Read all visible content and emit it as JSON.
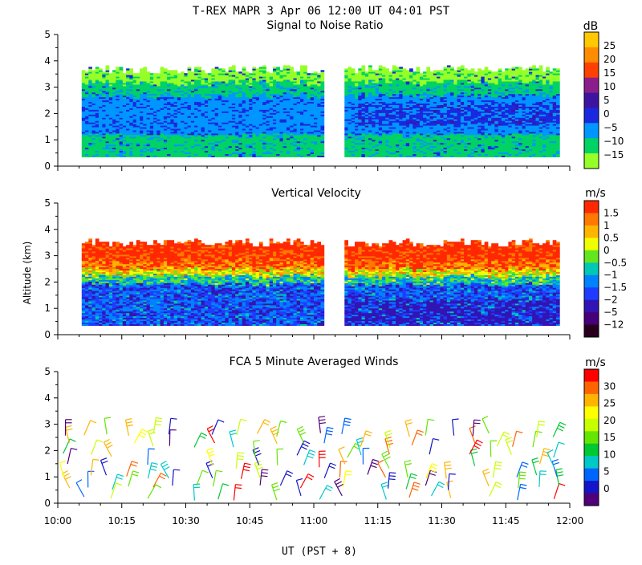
{
  "title": "T-REX  MAPR  3 Apr 06  12:00 UT  04:01  PST",
  "xaxis": {
    "label": "UT  (PST + 8)",
    "ticks": [
      "10:00",
      "10:15",
      "10:30",
      "10:45",
      "11:00",
      "11:15",
      "11:30",
      "11:45",
      "12:00"
    ],
    "range_minutes": [
      0,
      120
    ]
  },
  "ylabel": "Altitude (km)",
  "chart_data": [
    {
      "type": "heatmap",
      "title": "Signal to Noise Ratio",
      "ylim": [
        0,
        5
      ],
      "yticks": [
        "0",
        "1",
        "2",
        "3",
        "4",
        "5"
      ],
      "colorbar_unit": "dB",
      "colorbar_labels": [
        "25",
        "20",
        "15",
        "10",
        "5",
        "0",
        "−5",
        "−10",
        "−15"
      ],
      "colors": [
        "#ffc800",
        "#ff8c00",
        "#ff4000",
        "#8c1e8c",
        "#3c14a0",
        "#1a28e0",
        "#0096ff",
        "#00d264",
        "#96ff28"
      ],
      "data_gaps_minutes": [
        [
          0,
          5.5
        ],
        [
          62,
          67
        ],
        [
          117,
          120
        ]
      ],
      "data_altitude_range_km": [
        0.35,
        3.8
      ]
    },
    {
      "type": "heatmap",
      "title": "Vertical Velocity",
      "ylim": [
        0,
        5
      ],
      "yticks": [
        "0",
        "1",
        "2",
        "3",
        "4",
        "5"
      ],
      "colorbar_unit": "m/s",
      "colorbar_labels": [
        "1.5",
        "1",
        "0.5",
        "0",
        "−0.5",
        "−1",
        "−1.5",
        "−2",
        "−5",
        "−12"
      ],
      "colors": [
        "#ff2800",
        "#ff7800",
        "#ffb400",
        "#f0ff00",
        "#64e61e",
        "#00c8b4",
        "#0082ff",
        "#1e3cff",
        "#3214b4",
        "#46007a",
        "#28001e"
      ],
      "data_gaps_minutes": [
        [
          0,
          5.5
        ],
        [
          62,
          67
        ],
        [
          117,
          120
        ]
      ],
      "data_altitude_range_km": [
        0.35,
        3.8
      ]
    },
    {
      "type": "scatter",
      "title": "FCA 5 Minute Averaged Winds",
      "ylim": [
        0,
        5
      ],
      "yticks": [
        "0",
        "1",
        "2",
        "3",
        "4",
        "5"
      ],
      "colorbar_unit": "m/s",
      "colorbar_labels": [
        "30",
        "25",
        "20",
        "15",
        "10",
        "5",
        "0"
      ],
      "colors": [
        "#ff0000",
        "#ff6400",
        "#ffb400",
        "#ffff00",
        "#c8ff00",
        "#64e600",
        "#00c832",
        "#00c8c8",
        "#0064ff",
        "#1414c8",
        "#500078"
      ],
      "barb_times_minutes": [
        2,
        7,
        12,
        17,
        22,
        27,
        32,
        37,
        42,
        47,
        52,
        57,
        62,
        67,
        72,
        77,
        82,
        87,
        92,
        97,
        102,
        107,
        112,
        117
      ],
      "barb_altitudes_km": [
        0.2,
        0.6,
        1.0,
        1.4,
        1.8,
        2.2,
        2.6
      ]
    }
  ]
}
